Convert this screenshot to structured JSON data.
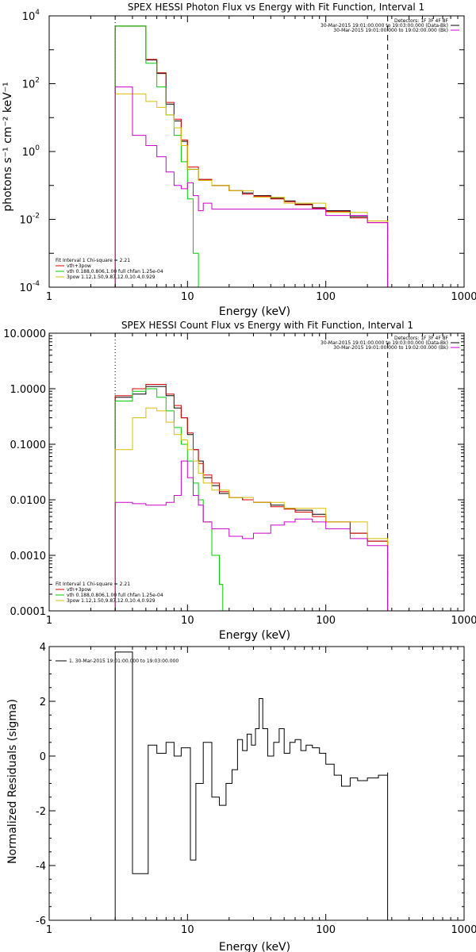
{
  "colors": {
    "data": "#000000",
    "total_fit": "#dd0000",
    "thermal": "#00cc00",
    "nonthermal": "#d8c000",
    "background": "#cc00cc"
  },
  "chart_data": [
    {
      "type": "line",
      "title": "SPEX HESSI Photon Flux vs Energy with Fit Function, Interval 1",
      "xlabel": "Energy (keV)",
      "ylabel": "photons s⁻¹ cm⁻² keV⁻¹",
      "xscale": "log",
      "yscale": "log",
      "xlim": [
        1,
        1000
      ],
      "ylim": [
        0.0001,
        10000
      ],
      "xticks": [
        "1",
        "10",
        "100",
        "1000"
      ],
      "yticks": [
        {
          "base": "10",
          "exp": "-4",
          "value": 0.0001
        },
        {
          "base": "10",
          "exp": "-2",
          "value": 0.01
        },
        {
          "base": "10",
          "exp": "0",
          "value": 1
        },
        {
          "base": "10",
          "exp": "2",
          "value": 100
        },
        {
          "base": "10",
          "exp": "4",
          "value": 10000
        }
      ],
      "vlines": [
        {
          "x": 3,
          "style": "dotted",
          "color": "#000000"
        },
        {
          "x": 280,
          "style": "dashed",
          "color": "#000000"
        }
      ],
      "legend_header": [
        "Detectors: 1F 3F 4F 8F",
        "30-Mar-2015 19:01:00.000 to 19:03:00.000 (Data-Bk)",
        "30-Mar-2015 19:01:00.000 to 19:02:00.000 (Bk)"
      ],
      "legend_header_colors": [
        "#000000",
        "#000000",
        "#cc00cc"
      ],
      "fit_info": [
        "Fit Interval 1   Chi-square = 2.21",
        "vth+3pow",
        "vth 0.188,0.806,1.00  full chfan 1.25e-04",
        "3pow 1.12,1.50,9.87,12.0,10.4,0.929"
      ],
      "fit_info_colors": [
        "#000000",
        "#dd0000",
        "#00cc00",
        "#d8c000"
      ],
      "series": [
        {
          "color": "#000000",
          "x": [
            3,
            4,
            5,
            6,
            7,
            8,
            9,
            10,
            12,
            15,
            20,
            25,
            30,
            40,
            50,
            60,
            80,
            100,
            150,
            200,
            280
          ],
          "y": [
            5000,
            5000,
            500,
            200,
            25,
            8,
            2,
            0.3,
            0.15,
            0.1,
            0.07,
            0.06,
            0.05,
            0.042,
            0.035,
            0.028,
            0.022,
            0.018,
            0.012,
            0.009,
            0.006
          ]
        },
        {
          "color": "#dd0000",
          "x": [
            3,
            4,
            5,
            6,
            7,
            8,
            9,
            10,
            12,
            15,
            20,
            25,
            30,
            40,
            50,
            60,
            80,
            100,
            150,
            200,
            280
          ],
          "y": [
            5000,
            5000,
            520,
            210,
            28,
            9,
            2.2,
            0.35,
            0.15,
            0.1,
            0.07,
            0.055,
            0.048,
            0.04,
            0.033,
            0.027,
            0.021,
            0.017,
            0.011,
            0.008,
            0.006
          ]
        },
        {
          "color": "#00cc00",
          "x": [
            3,
            4,
            5,
            6,
            7,
            8,
            9,
            10,
            11,
            12
          ],
          "y": [
            5000,
            5000,
            400,
            80,
            12,
            3,
            0.5,
            0.04,
            0.001,
            0.0001
          ]
        },
        {
          "color": "#d8c000",
          "x": [
            3,
            4,
            5,
            6,
            7,
            8,
            9,
            10,
            12,
            15,
            20,
            30,
            50,
            100,
            200,
            280
          ],
          "y": [
            50,
            50,
            30,
            20,
            12,
            5,
            1.5,
            0.3,
            0.14,
            0.1,
            0.07,
            0.045,
            0.03,
            0.016,
            0.009,
            0.006
          ]
        },
        {
          "color": "#cc00cc",
          "x": [
            3,
            4,
            5,
            6,
            7,
            8,
            9,
            10,
            11,
            12,
            13,
            15,
            20,
            30,
            50,
            100,
            200,
            280
          ],
          "y": [
            80,
            3,
            1.5,
            0.7,
            0.25,
            0.1,
            0.08,
            0.12,
            0.05,
            0.018,
            0.03,
            0.02,
            0.02,
            0.02,
            0.02,
            0.013,
            0.008,
            0.005
          ]
        }
      ]
    },
    {
      "type": "line",
      "title": "SPEX HESSI Count Flux vs Energy with Fit Function, Interval 1",
      "xlabel": "Energy (keV)",
      "ylabel": "",
      "xscale": "log",
      "yscale": "log",
      "xlim": [
        1,
        1000
      ],
      "ylim": [
        0.0001,
        10
      ],
      "xticks": [
        "1",
        "10",
        "100",
        "1000"
      ],
      "yticks": [
        {
          "base": "0.0001",
          "value": 0.0001
        },
        {
          "base": "0.0010",
          "value": 0.001
        },
        {
          "base": "0.0100",
          "value": 0.01
        },
        {
          "base": "0.1000",
          "value": 0.1
        },
        {
          "base": "1.0000",
          "value": 1
        },
        {
          "base": "10.0000",
          "value": 10
        }
      ],
      "vlines": [
        {
          "x": 3,
          "style": "dotted",
          "color": "#000000"
        },
        {
          "x": 280,
          "style": "dashed",
          "color": "#000000"
        }
      ],
      "legend_header": [
        "Detectors: 1F 3F 4F 8F",
        "30-Mar-2015 19:01:00.000 to 19:03:00.000 (Data-Bk)",
        "30-Mar-2015 19:01:00.000 to 19:02:00.000 (Bk)"
      ],
      "legend_header_colors": [
        "#000000",
        "#000000",
        "#cc00cc"
      ],
      "fit_info": [
        "Fit Interval 1   Chi-square = 2.21",
        "vth+3pow",
        "vth 0.188,0.806,1.00  full chfan 1.25e-04",
        "3pow 1.12,1.50,9.87,12.0,10.4,0.929"
      ],
      "fit_info_colors": [
        "#000000",
        "#dd0000",
        "#00cc00",
        "#d8c000"
      ],
      "series": [
        {
          "color": "#000000",
          "x": [
            3,
            4,
            5,
            6,
            7,
            8,
            9,
            10,
            11,
            12,
            13,
            15,
            17,
            20,
            25,
            30,
            40,
            50,
            60,
            80,
            100,
            150,
            200,
            280
          ],
          "y": [
            0.7,
            0.8,
            1.1,
            1.1,
            0.75,
            0.45,
            0.3,
            0.15,
            0.08,
            0.05,
            0.025,
            0.018,
            0.013,
            0.011,
            0.01,
            0.009,
            0.008,
            0.007,
            0.0065,
            0.0055,
            0.004,
            0.0025,
            0.0018,
            0.001
          ]
        },
        {
          "color": "#dd0000",
          "x": [
            3,
            4,
            5,
            6,
            7,
            8,
            9,
            10,
            11,
            12,
            13,
            15,
            17,
            20,
            25,
            30,
            40,
            50,
            60,
            80,
            100,
            150,
            200,
            280
          ],
          "y": [
            0.75,
            1.0,
            1.2,
            1.2,
            0.8,
            0.5,
            0.3,
            0.16,
            0.08,
            0.045,
            0.028,
            0.02,
            0.014,
            0.011,
            0.01,
            0.009,
            0.0075,
            0.0068,
            0.006,
            0.005,
            0.004,
            0.0025,
            0.0018,
            0.0011
          ]
        },
        {
          "color": "#00cc00",
          "x": [
            3,
            4,
            5,
            6,
            7,
            8,
            9,
            10,
            11,
            12,
            13,
            15,
            17,
            18
          ],
          "y": [
            0.6,
            0.9,
            1.0,
            0.7,
            0.4,
            0.2,
            0.1,
            0.05,
            0.02,
            0.01,
            0.004,
            0.001,
            0.0003,
            0.0001
          ]
        },
        {
          "color": "#d8c000",
          "x": [
            3,
            4,
            5,
            6,
            7,
            8,
            9,
            10,
            11,
            12,
            13,
            15,
            20,
            30,
            50,
            100,
            200,
            280
          ],
          "y": [
            0.08,
            0.3,
            0.45,
            0.4,
            0.25,
            0.15,
            0.12,
            0.08,
            0.05,
            0.03,
            0.02,
            0.015,
            0.011,
            0.009,
            0.007,
            0.004,
            0.002,
            0.001
          ]
        },
        {
          "color": "#cc00cc",
          "x": [
            3,
            4,
            5,
            6,
            7,
            8,
            9,
            10,
            11,
            12,
            13,
            15,
            20,
            25,
            30,
            40,
            50,
            60,
            80,
            100,
            150,
            200,
            280
          ],
          "y": [
            0.009,
            0.0085,
            0.008,
            0.008,
            0.009,
            0.012,
            0.05,
            0.025,
            0.012,
            0.008,
            0.004,
            0.003,
            0.0022,
            0.002,
            0.0025,
            0.0035,
            0.004,
            0.0045,
            0.004,
            0.003,
            0.002,
            0.0015,
            0.0008
          ]
        }
      ]
    },
    {
      "type": "line",
      "title": "",
      "xlabel": "Energy (keV)",
      "ylabel": "Normalized Residuals (sigma)",
      "xscale": "log",
      "yscale": "linear",
      "xlim": [
        1,
        1000
      ],
      "ylim": [
        -6,
        4
      ],
      "xticks": [
        "1",
        "10",
        "100",
        "1000"
      ],
      "yticks": [
        {
          "base": "-6",
          "value": -6
        },
        {
          "base": "-4",
          "value": -4
        },
        {
          "base": "-2",
          "value": -2
        },
        {
          "base": "0",
          "value": 0
        },
        {
          "base": "2",
          "value": 2
        },
        {
          "base": "4",
          "value": 4
        }
      ],
      "legend_entry": "1. 30-Mar-2015 19:01:00.000 to 19:03:00.000",
      "series": [
        {
          "color": "#000000",
          "name": "1. 30-Mar-2015 19:01:00.000 to 19:03:00.000",
          "x": [
            3,
            4,
            5.2,
            6,
            7,
            8,
            9,
            10.5,
            11.5,
            13,
            15,
            17,
            19,
            21,
            23,
            25,
            27,
            29,
            31,
            33,
            35,
            38,
            42,
            46,
            50,
            55,
            60,
            66,
            72,
            80,
            90,
            100,
            115,
            130,
            150,
            170,
            200,
            240,
            280
          ],
          "y": [
            3.8,
            -4.3,
            0.4,
            0.1,
            0.5,
            0.0,
            0.3,
            -3.8,
            -1.0,
            0.5,
            -1.5,
            -1.8,
            -1.0,
            -0.5,
            0.6,
            0.2,
            0.8,
            0.4,
            1.0,
            2.1,
            1.0,
            0.0,
            0.5,
            1.0,
            0.1,
            0.5,
            0.6,
            0.2,
            0.4,
            0.3,
            0.1,
            -0.3,
            -0.7,
            -1.1,
            -0.8,
            -0.9,
            -0.8,
            -0.7,
            -0.6
          ]
        }
      ]
    }
  ]
}
